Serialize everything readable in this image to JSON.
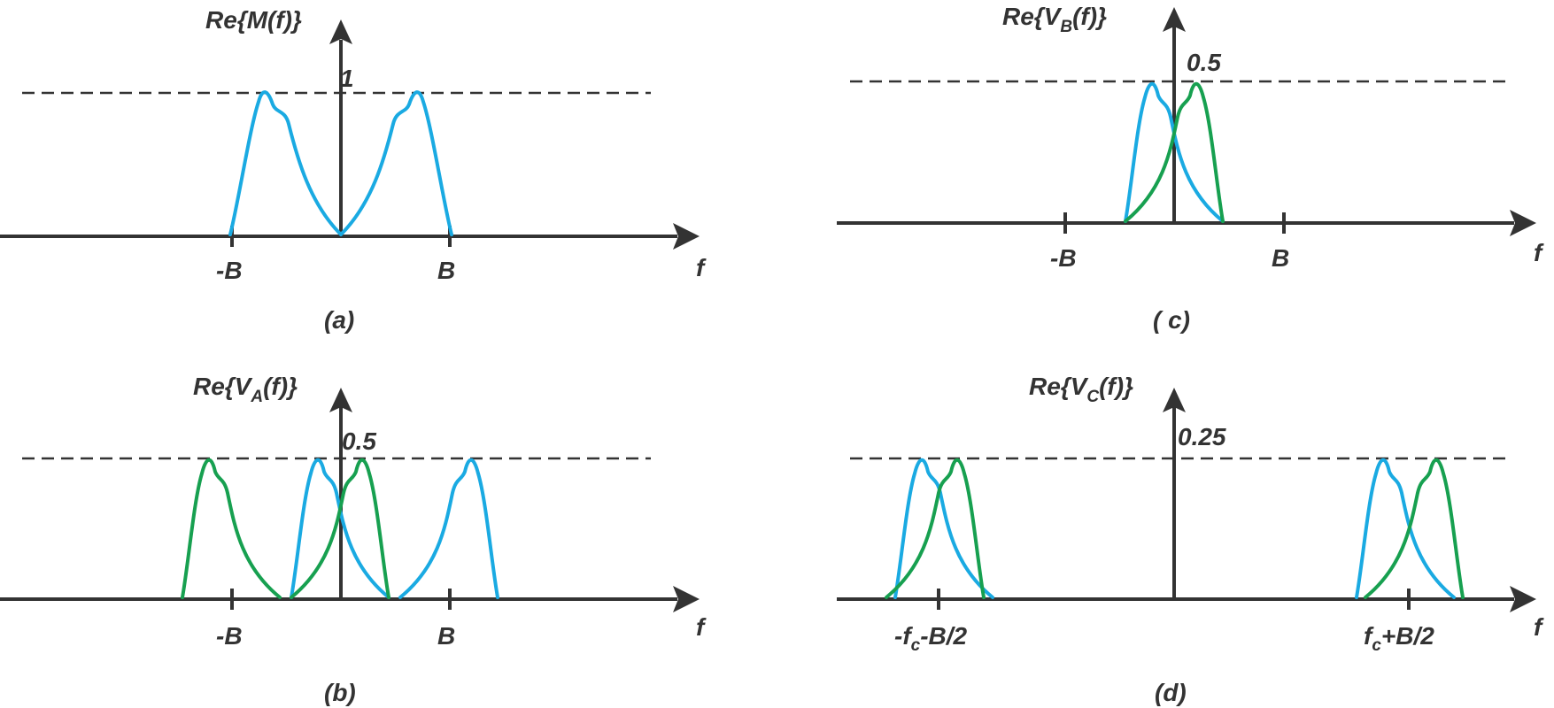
{
  "panels": {
    "a": {
      "ylabel_pre": "Re{M(f)}",
      "level": "1",
      "ticks": [
        "-B",
        "B"
      ],
      "xlabel": "f",
      "caption": "(a)"
    },
    "b": {
      "ylabel_pre": "Re{V",
      "ylabel_sub": "A",
      "ylabel_post": "(f)}",
      "level": "0.5",
      "ticks": [
        "-B",
        "B"
      ],
      "xlabel": "f",
      "caption": "(b)"
    },
    "c": {
      "ylabel_pre": "Re{V",
      "ylabel_sub": "B",
      "ylabel_post": "(f)}",
      "level": "0.5",
      "ticks": [
        "-B",
        "B"
      ],
      "xlabel": "f",
      "caption": "( c)"
    },
    "d": {
      "ylabel_pre": "Re{V",
      "ylabel_sub": "C",
      "ylabel_post": "(f)}",
      "level": "0.25",
      "tick_left_pre": "-f",
      "tick_left_sub": "c",
      "tick_left_post": "-B/2",
      "tick_right_pre": "f",
      "tick_right_sub": "c",
      "tick_right_post": "+B/2",
      "xlabel": "f",
      "caption": "(d)"
    }
  },
  "colors": {
    "blue": "#1aaae2",
    "green": "#17a050",
    "axis": "#333333"
  }
}
